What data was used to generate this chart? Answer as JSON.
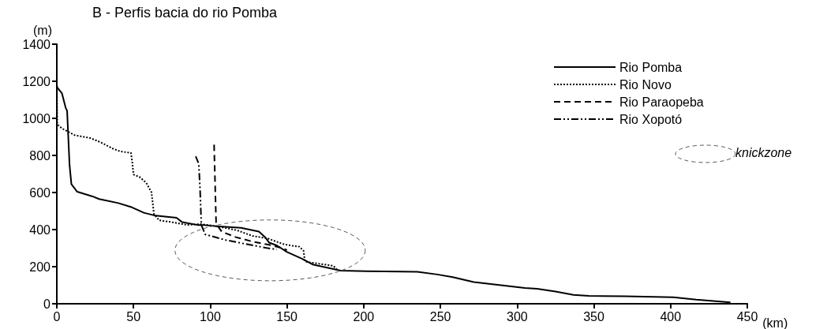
{
  "chart_data": {
    "type": "line",
    "title": "B - Perfis bacia do rio Pomba",
    "xlabel": "(km)",
    "ylabel": "(m)",
    "annotations": [
      "knickzone"
    ],
    "xlim": [
      0,
      450
    ],
    "xticks": [
      0,
      50,
      100,
      150,
      200,
      250,
      300,
      350,
      400,
      450
    ],
    "ylim": [
      0,
      1400
    ],
    "yticks": [
      0,
      200,
      400,
      600,
      800,
      1000,
      1200,
      1400
    ],
    "grid": false,
    "legend": "top right",
    "marker": "none",
    "series": [
      {
        "name": "Rio Pomba",
        "color": "#000000",
        "line_style": "solid",
        "x": [
          0,
          0.3,
          3.3,
          5.8,
          6.7,
          8.3,
          9.5,
          13.3,
          23.3,
          27.5,
          40,
          49,
          56.7,
          63.3,
          71.7,
          78,
          81.7,
          91.7,
          95,
          104,
          120,
          131.7,
          135.8,
          138.3,
          143.3,
          150,
          160,
          166.7,
          185,
          201.7,
          235,
          248,
          258,
          271.7,
          291.7,
          305,
          313,
          325,
          336.7,
          346.7,
          370,
          401.7,
          416.7,
          439
        ],
        "values": [
          1180,
          1166,
          1136,
          1056,
          1041,
          748,
          645,
          604,
          579,
          565,
          543,
          520,
          491,
          477,
          469,
          464,
          440,
          425,
          425,
          418,
          410,
          389,
          359,
          330,
          315,
          279,
          242,
          212,
          179,
          176,
          172,
          158,
          144,
          117,
          98,
          85,
          81,
          66,
          48,
          43,
          40,
          35,
          22,
          7
        ]
      },
      {
        "name": "Rio Novo",
        "color": "#000000",
        "line_style": "dotted",
        "x": [
          0,
          0.3,
          3.3,
          11.7,
          21.7,
          28.3,
          36.7,
          41.7,
          48.3,
          49.2,
          50,
          54.2,
          58.3,
          61.7,
          63.3,
          66.7,
          75,
          85,
          93.5,
          103.3,
          117.5,
          127.5,
          137.5,
          147.5,
          151.7,
          158,
          160.8,
          161.7,
          170,
          180,
          182.5
        ],
        "values": [
          1202,
          968,
          946,
          909,
          894,
          872,
          836,
          821,
          814,
          762,
          697,
          682,
          652,
          601,
          484,
          450,
          440,
          425,
          430,
          420,
          396,
          366,
          352,
          322,
          315,
          308,
          286,
          227,
          217,
          205,
          188
        ]
      },
      {
        "name": "Rio Paraopeba",
        "color": "#000000",
        "line_style": "dashed",
        "x": [
          102.5,
          103.8,
          105,
          107.5,
          116.7,
          126.7,
          140,
          146.7,
          150
        ],
        "values": [
          858,
          440,
          418,
          389,
          359,
          337,
          315,
          301,
          290
        ]
      },
      {
        "name": "Rio Xopotó",
        "color": "#000000",
        "line_style": "dashdot",
        "x": [
          90.5,
          92.5,
          93.3,
          94.2,
          96.7,
          110,
          123.3,
          136.7,
          143.3
        ],
        "values": [
          795,
          755,
          630,
          425,
          374,
          344,
          322,
          301,
          293
        ]
      }
    ]
  }
}
